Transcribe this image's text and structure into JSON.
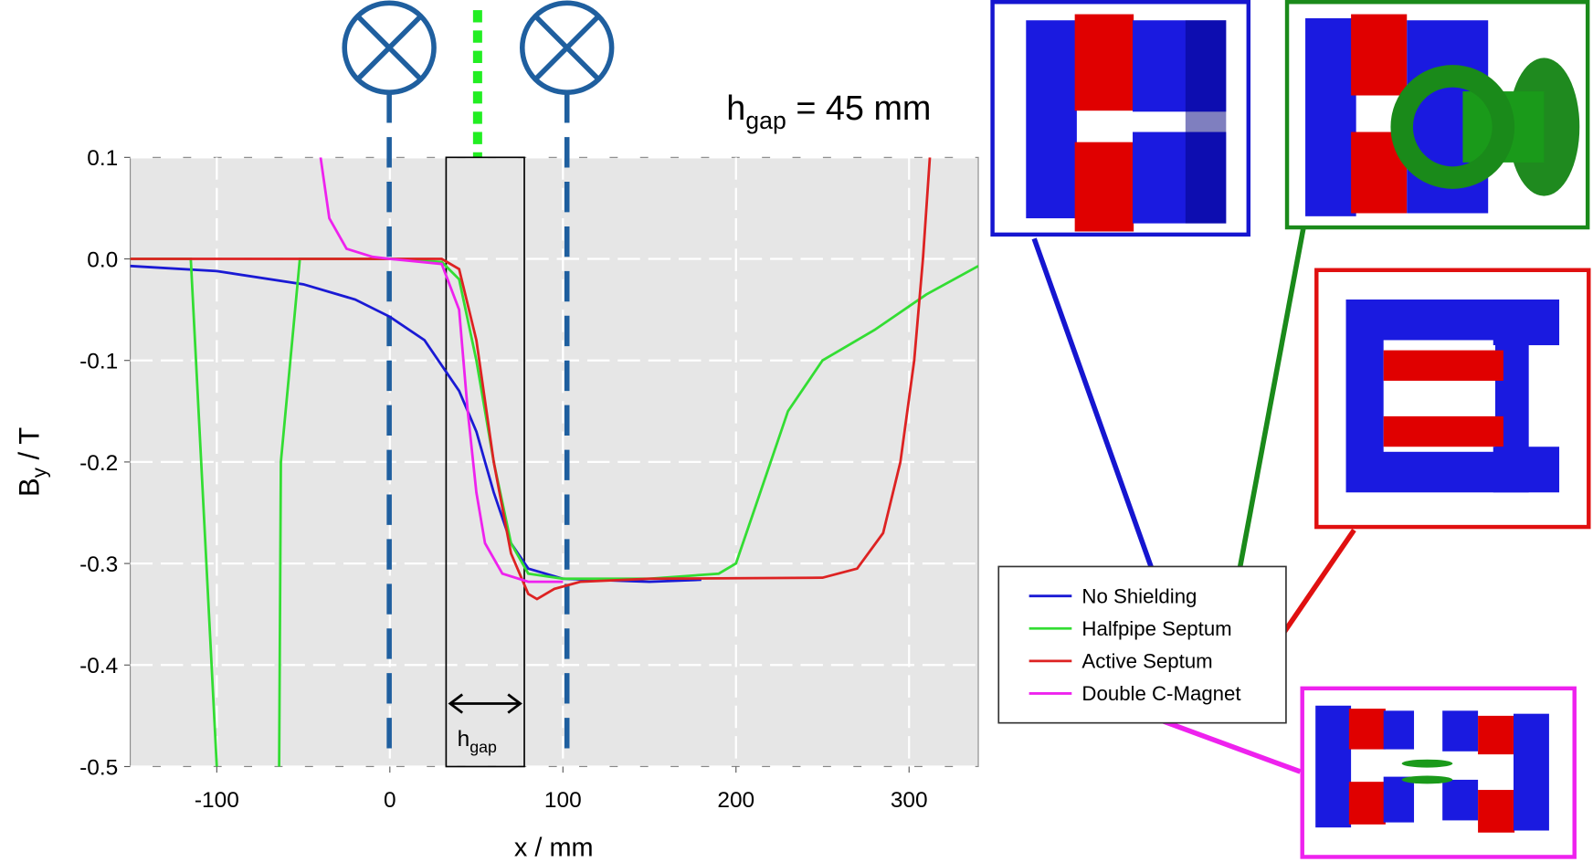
{
  "chart_data": {
    "type": "line",
    "x_label": "x / mm",
    "y_label": {
      "main": "B",
      "sub": "y",
      "rest": " / T"
    },
    "xlim": [
      -150,
      340
    ],
    "ylim": [
      -0.5,
      0.1
    ],
    "xticks": [
      -100,
      0,
      100,
      200,
      300
    ],
    "yticks": [
      0.1,
      {
        "value": 0,
        "label": "0.0"
      },
      -0.1,
      -0.2,
      -0.3,
      -0.4,
      -0.5
    ],
    "grid": true,
    "legend_position": "lower right",
    "annotations": {
      "gap_title": {
        "main": "h",
        "sub": "gap",
        "rest": " = 45 mm"
      },
      "gap_arrow": {
        "main": "h",
        "sub": "gap"
      }
    },
    "series": [
      {
        "name": "No Shielding",
        "color": "#1a1ad4",
        "x": [
          -150,
          -100,
          -50,
          -20,
          0,
          20,
          40,
          50,
          60,
          70,
          80,
          100,
          150,
          180
        ],
        "values": [
          -0.007,
          -0.012,
          -0.025,
          -0.04,
          -0.057,
          -0.08,
          -0.13,
          -0.17,
          -0.23,
          -0.28,
          -0.305,
          -0.315,
          -0.318,
          -0.316
        ]
      },
      {
        "name": "Halfpipe Septum",
        "color": "#33dd33",
        "x": [
          -150,
          -115,
          -100,
          -82,
          -64,
          -63,
          -52,
          0,
          30,
          40,
          50,
          60,
          70,
          80,
          100,
          150,
          190,
          200,
          210,
          230,
          250,
          280,
          310,
          340
        ],
        "values": [
          0,
          0,
          -0.5,
          null,
          -0.5,
          -0.2,
          0,
          0,
          -0.003,
          -0.02,
          -0.1,
          -0.2,
          -0.28,
          -0.31,
          -0.315,
          -0.315,
          -0.31,
          -0.3,
          -0.25,
          -0.15,
          -0.1,
          -0.07,
          -0.035,
          -0.007
        ]
      },
      {
        "name": "Active Septum",
        "color": "#dd2222",
        "x": [
          -150,
          0,
          30,
          40,
          50,
          60,
          70,
          80,
          85,
          95,
          110,
          150,
          250,
          270,
          285,
          295,
          303,
          308,
          312
        ],
        "values": [
          0,
          0,
          0,
          -0.01,
          -0.08,
          -0.2,
          -0.29,
          -0.33,
          -0.335,
          -0.325,
          -0.318,
          -0.315,
          -0.314,
          -0.305,
          -0.27,
          -0.2,
          -0.1,
          0,
          0.1
        ]
      },
      {
        "name": "Double C-Magnet",
        "color": "#ee22ee",
        "x": [
          -40,
          -35,
          -25,
          -10,
          0,
          30,
          40,
          45,
          50,
          55,
          65,
          80,
          100
        ],
        "values": [
          0.1,
          0.04,
          0.01,
          0.002,
          0,
          -0.005,
          -0.05,
          -0.15,
          -0.23,
          -0.28,
          -0.31,
          -0.318,
          -0.318
        ]
      }
    ]
  }
}
